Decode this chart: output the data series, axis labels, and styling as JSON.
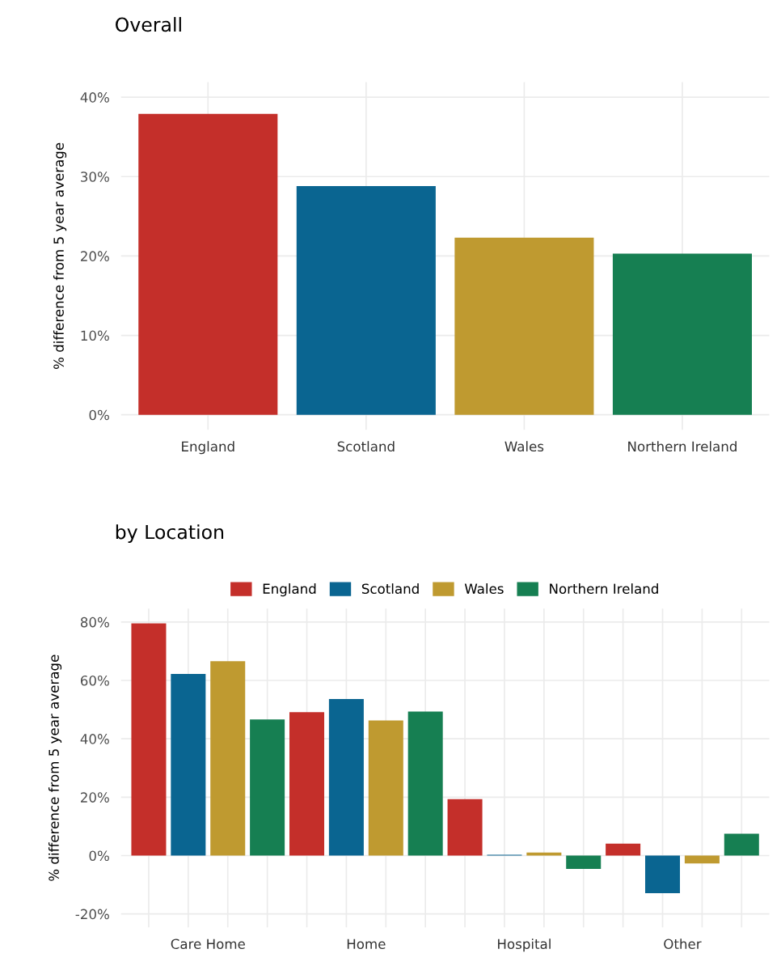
{
  "chart_data": [
    {
      "type": "bar",
      "title": "Overall",
      "ylabel": "% difference from 5 year average",
      "categories": [
        "England",
        "Scotland",
        "Wales",
        "Northern Ireland"
      ],
      "values": [
        37.9,
        28.8,
        22.3,
        20.3
      ],
      "colors": [
        "#c42f2a",
        "#0a6591",
        "#bf9a30",
        "#167f52"
      ],
      "ylim": [
        -1.9,
        41.9
      ],
      "yticks": [
        {
          "value": 0,
          "label": "0%"
        },
        {
          "value": 10,
          "label": "10%"
        },
        {
          "value": 20,
          "label": "20%"
        },
        {
          "value": 30,
          "label": "30%"
        },
        {
          "value": 40,
          "label": "40%"
        }
      ],
      "grid": true,
      "legend": false
    },
    {
      "type": "bar",
      "title": "by Location",
      "ylabel": "% difference from 5 year average",
      "categories": [
        "Care Home",
        "Home",
        "Hospital",
        "Other"
      ],
      "series": [
        {
          "name": "England",
          "color": "#c42f2a",
          "values": [
            79.5,
            49.1,
            19.3,
            4.1
          ]
        },
        {
          "name": "Scotland",
          "color": "#0a6591",
          "values": [
            62.2,
            53.6,
            0.3,
            -12.9
          ]
        },
        {
          "name": "Wales",
          "color": "#bf9a30",
          "values": [
            66.6,
            46.3,
            1.0,
            -2.7
          ]
        },
        {
          "name": "Northern Ireland",
          "color": "#167f52",
          "values": [
            46.6,
            49.3,
            -4.6,
            7.5
          ]
        }
      ],
      "ylim": [
        -24.6,
        84.6
      ],
      "yticks": [
        {
          "value": -20,
          "label": "-20%"
        },
        {
          "value": 0,
          "label": "0%"
        },
        {
          "value": 20,
          "label": "20%"
        },
        {
          "value": 40,
          "label": "40%"
        },
        {
          "value": 60,
          "label": "60%"
        },
        {
          "value": 80,
          "label": "80%"
        }
      ],
      "grid": true,
      "legend": "top"
    }
  ]
}
